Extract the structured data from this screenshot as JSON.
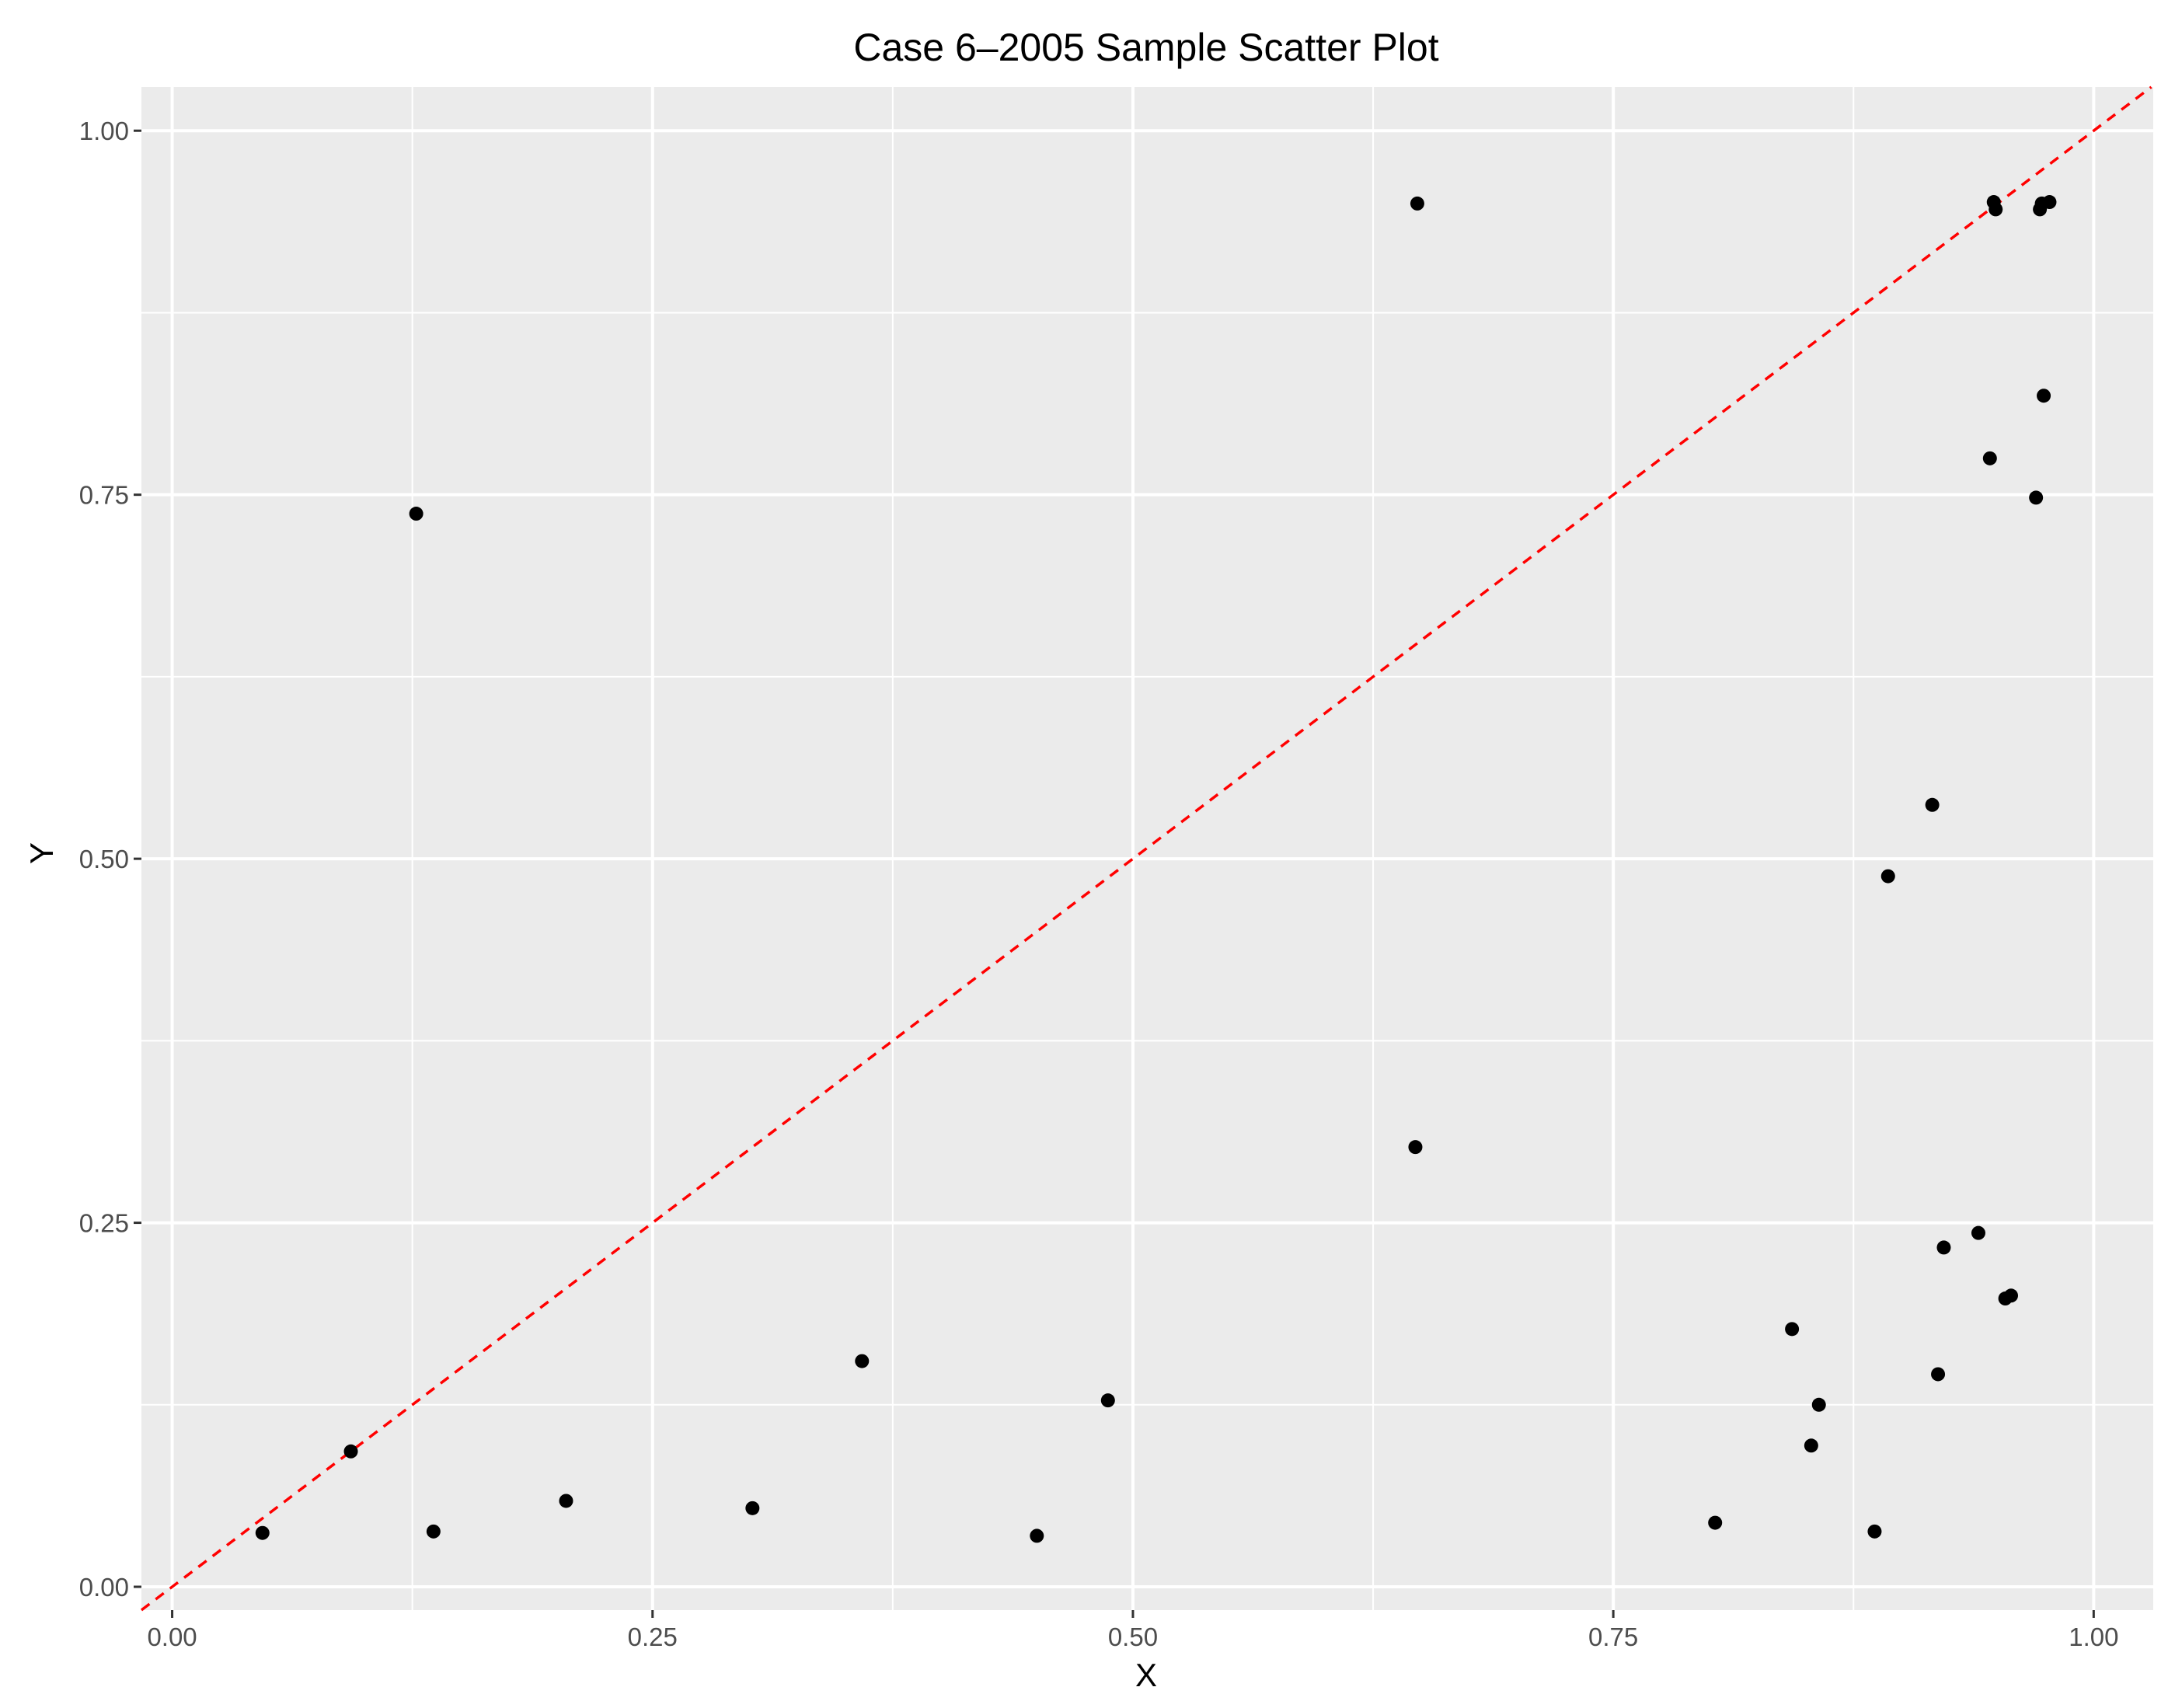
{
  "chart_data": {
    "type": "scatter",
    "title": "Case 6–2005 Sample Scatter Plot",
    "xlabel": "X",
    "ylabel": "Y",
    "xlim": [
      -0.016,
      1.031
    ],
    "ylim": [
      -0.016,
      1.03
    ],
    "x_ticks": [
      0,
      0.25,
      0.5,
      0.75,
      1
    ],
    "x_tick_labels": [
      "0.00",
      "0.25",
      "0.50",
      "0.75",
      "1.00"
    ],
    "y_ticks": [
      0,
      0.25,
      0.5,
      0.75,
      1
    ],
    "y_tick_labels": [
      "0.00",
      "0.25",
      "0.50",
      "0.75",
      "1.00"
    ],
    "grid": true,
    "reference_line": {
      "slope": 1,
      "intercept": 0,
      "color": "#ff0000",
      "style": "dashed"
    },
    "point_color": "#000000",
    "panel_background": "#ebebeb",
    "grid_color": "#ffffff",
    "points": [
      {
        "x": 0.047,
        "y": 0.037
      },
      {
        "x": 0.093,
        "y": 0.093
      },
      {
        "x": 0.127,
        "y": 0.737
      },
      {
        "x": 0.136,
        "y": 0.038
      },
      {
        "x": 0.205,
        "y": 0.059
      },
      {
        "x": 0.302,
        "y": 0.054
      },
      {
        "x": 0.359,
        "y": 0.155
      },
      {
        "x": 0.45,
        "y": 0.035
      },
      {
        "x": 0.487,
        "y": 0.128
      },
      {
        "x": 0.647,
        "y": 0.302
      },
      {
        "x": 0.648,
        "y": 0.95
      },
      {
        "x": 0.803,
        "y": 0.044
      },
      {
        "x": 0.843,
        "y": 0.177
      },
      {
        "x": 0.853,
        "y": 0.097
      },
      {
        "x": 0.857,
        "y": 0.125
      },
      {
        "x": 0.886,
        "y": 0.038
      },
      {
        "x": 0.893,
        "y": 0.488
      },
      {
        "x": 0.916,
        "y": 0.537
      },
      {
        "x": 0.919,
        "y": 0.146
      },
      {
        "x": 0.922,
        "y": 0.233
      },
      {
        "x": 0.94,
        "y": 0.243
      },
      {
        "x": 0.946,
        "y": 0.775
      },
      {
        "x": 0.948,
        "y": 0.951
      },
      {
        "x": 0.949,
        "y": 0.946
      },
      {
        "x": 0.954,
        "y": 0.198
      },
      {
        "x": 0.957,
        "y": 0.2
      },
      {
        "x": 0.97,
        "y": 0.748
      },
      {
        "x": 0.972,
        "y": 0.946
      },
      {
        "x": 0.973,
        "y": 0.95
      },
      {
        "x": 0.974,
        "y": 0.818
      },
      {
        "x": 0.977,
        "y": 0.951
      }
    ]
  }
}
